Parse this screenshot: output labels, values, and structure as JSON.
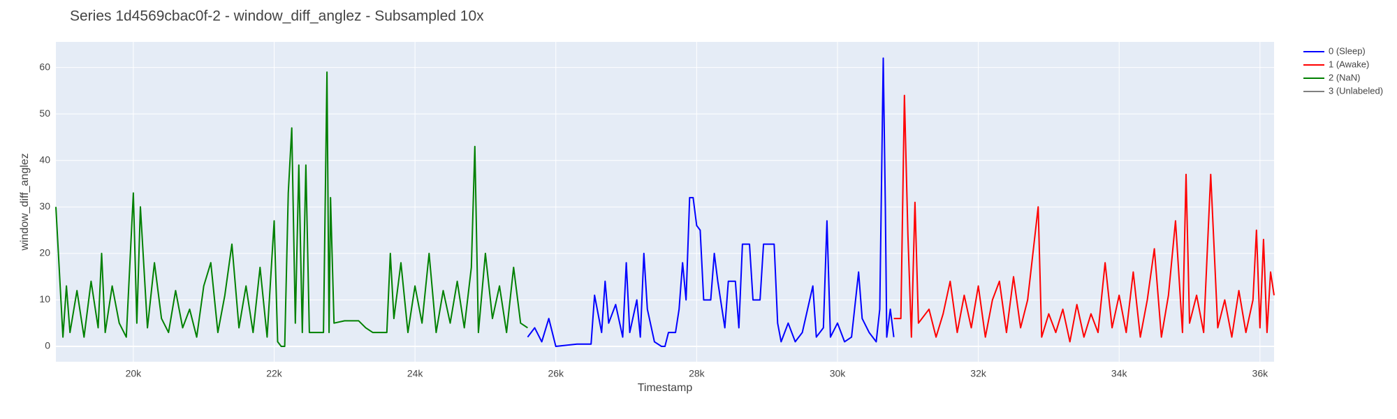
{
  "chart_data": {
    "type": "line",
    "title": "Series 1d4569cbac0f-2 - window_diff_anglez - Subsampled 10x",
    "x_label": "Timestamp",
    "y_label": "window_diff_anglez",
    "xlim": [
      18900,
      36200
    ],
    "ylim": [
      -3.3,
      65.5
    ],
    "xticks": [
      {
        "value": 20000,
        "label": "20k"
      },
      {
        "value": 22000,
        "label": "22k"
      },
      {
        "value": 24000,
        "label": "24k"
      },
      {
        "value": 26000,
        "label": "26k"
      },
      {
        "value": 28000,
        "label": "28k"
      },
      {
        "value": 30000,
        "label": "30k"
      },
      {
        "value": 32000,
        "label": "32k"
      },
      {
        "value": 34000,
        "label": "34k"
      },
      {
        "value": 36000,
        "label": "36k"
      }
    ],
    "yticks": [
      0,
      10,
      20,
      30,
      40,
      50,
      60
    ],
    "grid": true,
    "legend": "top-right",
    "series": [
      {
        "name": "0 (Sleep)",
        "color": "#0000ff",
        "x": [
          25600,
          25700,
          25800,
          25900,
          26000,
          26300,
          26500,
          26550,
          26650,
          26700,
          26750,
          26850,
          26950,
          27000,
          27050,
          27150,
          27200,
          27250,
          27300,
          27400,
          27500,
          27550,
          27600,
          27700,
          27750,
          27800,
          27850,
          27900,
          27950,
          28000,
          28050,
          28100,
          28200,
          28250,
          28300,
          28400,
          28450,
          28550,
          28600,
          28650,
          28750,
          28800,
          28900,
          28950,
          29100,
          29150,
          29200,
          29300,
          29400,
          29500,
          29650,
          29700,
          29800,
          29850,
          29900,
          30000,
          30100,
          30200,
          30300,
          30350,
          30450,
          30550,
          30600,
          30650,
          30680,
          30700,
          30750,
          30800
        ],
        "values": [
          2,
          4,
          1,
          6,
          0,
          0.5,
          0.5,
          11,
          3,
          14,
          5,
          9,
          2,
          18,
          3,
          10,
          2,
          20,
          8,
          1,
          0,
          0,
          3,
          3,
          8,
          18,
          10,
          32,
          32,
          26,
          25,
          10,
          10,
          20,
          14,
          4,
          14,
          14,
          4,
          22,
          22,
          10,
          10,
          22,
          22,
          5,
          1,
          5,
          1,
          3,
          13,
          2,
          4,
          27,
          2,
          5,
          1,
          2,
          16,
          6,
          3,
          1,
          8,
          62,
          30,
          2,
          8,
          2
        ]
      },
      {
        "name": "1 (Awake)",
        "color": "#ff0000",
        "x": [
          30800,
          30900,
          30950,
          31000,
          31050,
          31100,
          31150,
          31300,
          31400,
          31500,
          31600,
          31700,
          31800,
          31900,
          32000,
          32100,
          32200,
          32300,
          32400,
          32500,
          32600,
          32700,
          32850,
          32900,
          33000,
          33100,
          33200,
          33300,
          33400,
          33500,
          33600,
          33700,
          33800,
          33900,
          34000,
          34100,
          34200,
          34300,
          34400,
          34500,
          34600,
          34700,
          34800,
          34900,
          34950,
          35000,
          35100,
          35200,
          35300,
          35400,
          35500,
          35600,
          35700,
          35800,
          35900,
          35950,
          36000,
          36050,
          36100,
          36150,
          36200
        ],
        "values": [
          6,
          6,
          54,
          24,
          2,
          31,
          5,
          8,
          2,
          7,
          14,
          3,
          11,
          4,
          13,
          2,
          10,
          14,
          3,
          15,
          4,
          10,
          30,
          2,
          7,
          3,
          8,
          1,
          9,
          2,
          7,
          3,
          18,
          4,
          11,
          3,
          16,
          2,
          10,
          21,
          2,
          11,
          27,
          3,
          37,
          5,
          11,
          3,
          37,
          4,
          10,
          2,
          12,
          3,
          10,
          25,
          4,
          23,
          3,
          16,
          11
        ]
      },
      {
        "name": "2 (NaN)",
        "color": "#008000",
        "x": [
          18900,
          19000,
          19050,
          19100,
          19200,
          19300,
          19400,
          19500,
          19550,
          19600,
          19700,
          19800,
          19900,
          20000,
          20050,
          20100,
          20200,
          20300,
          20400,
          20500,
          20600,
          20700,
          20800,
          20900,
          21000,
          21100,
          21200,
          21300,
          21400,
          21500,
          21600,
          21700,
          21800,
          21900,
          22000,
          22050,
          22100,
          22150,
          22200,
          22250,
          22300,
          22350,
          22400,
          22450,
          22500,
          22600,
          22700,
          22750,
          22780,
          22800,
          22850,
          23000,
          23200,
          23300,
          23400,
          23600,
          23650,
          23700,
          23800,
          23900,
          24000,
          24100,
          24200,
          24300,
          24400,
          24500,
          24600,
          24700,
          24800,
          24850,
          24900,
          25000,
          25100,
          25200,
          25300,
          25400,
          25500,
          25600
        ],
        "values": [
          30,
          2,
          13,
          3,
          12,
          2,
          14,
          4,
          20,
          3,
          13,
          5,
          2,
          33,
          5,
          30,
          4,
          18,
          6,
          3,
          12,
          4,
          8,
          2,
          13,
          18,
          3,
          11,
          22,
          4,
          13,
          3,
          17,
          2,
          27,
          1,
          0,
          0,
          33,
          47,
          5,
          39,
          3,
          39,
          3,
          3,
          3,
          59,
          3,
          32,
          5,
          5.5,
          5.5,
          4,
          3,
          3,
          20,
          6,
          18,
          3,
          13,
          5,
          20,
          3,
          12,
          5,
          14,
          4,
          17,
          43,
          3,
          20,
          6,
          13,
          3,
          17,
          5,
          4
        ]
      },
      {
        "name": "3 (Unlabeled)",
        "color": "#808080",
        "x": [],
        "values": []
      }
    ]
  }
}
